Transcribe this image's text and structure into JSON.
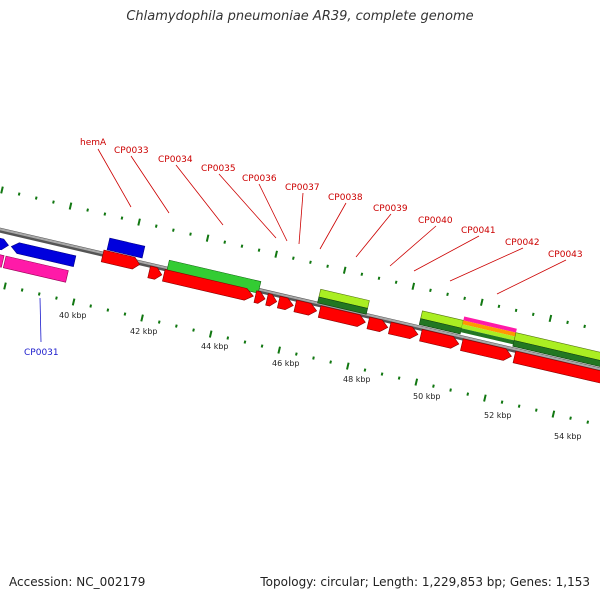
{
  "title": "Chlamydophila pneumoniae AR39, complete genome",
  "footer": {
    "accession": "Accession: NC_002179",
    "summary": "Topology: circular; Length: 1,229,853 bp; Genes: 1,153"
  },
  "colors": {
    "cds": "#ff0000",
    "blue_feature": "#0000dd",
    "pink_feature": "#ff1aa8",
    "green_feature": "#33cc33",
    "lime_feature": "#aaee22",
    "dark_green_feature": "#227722",
    "backbone": "#808080",
    "tick": "#117711",
    "label_red": "#cc0000",
    "label_blue": "#1a1acc"
  },
  "scale_labels": [
    "40 kbp",
    "42 kbp",
    "44 kbp",
    "46 kbp",
    "48 kbp",
    "50 kbp",
    "52 kbp",
    "54 kbp"
  ],
  "gene_labels": [
    {
      "text": "hemA",
      "color": "red"
    },
    {
      "text": "CP0033",
      "color": "red"
    },
    {
      "text": "CP0034",
      "color": "red"
    },
    {
      "text": "CP0035",
      "color": "red"
    },
    {
      "text": "CP0036",
      "color": "red"
    },
    {
      "text": "CP0037",
      "color": "red"
    },
    {
      "text": "CP0038",
      "color": "red"
    },
    {
      "text": "CP0039",
      "color": "red"
    },
    {
      "text": "CP0040",
      "color": "red"
    },
    {
      "text": "CP0041",
      "color": "red"
    },
    {
      "text": "CP0042",
      "color": "red"
    },
    {
      "text": "CP0043",
      "color": "red"
    },
    {
      "text": "CP0031",
      "color": "blue"
    }
  ]
}
